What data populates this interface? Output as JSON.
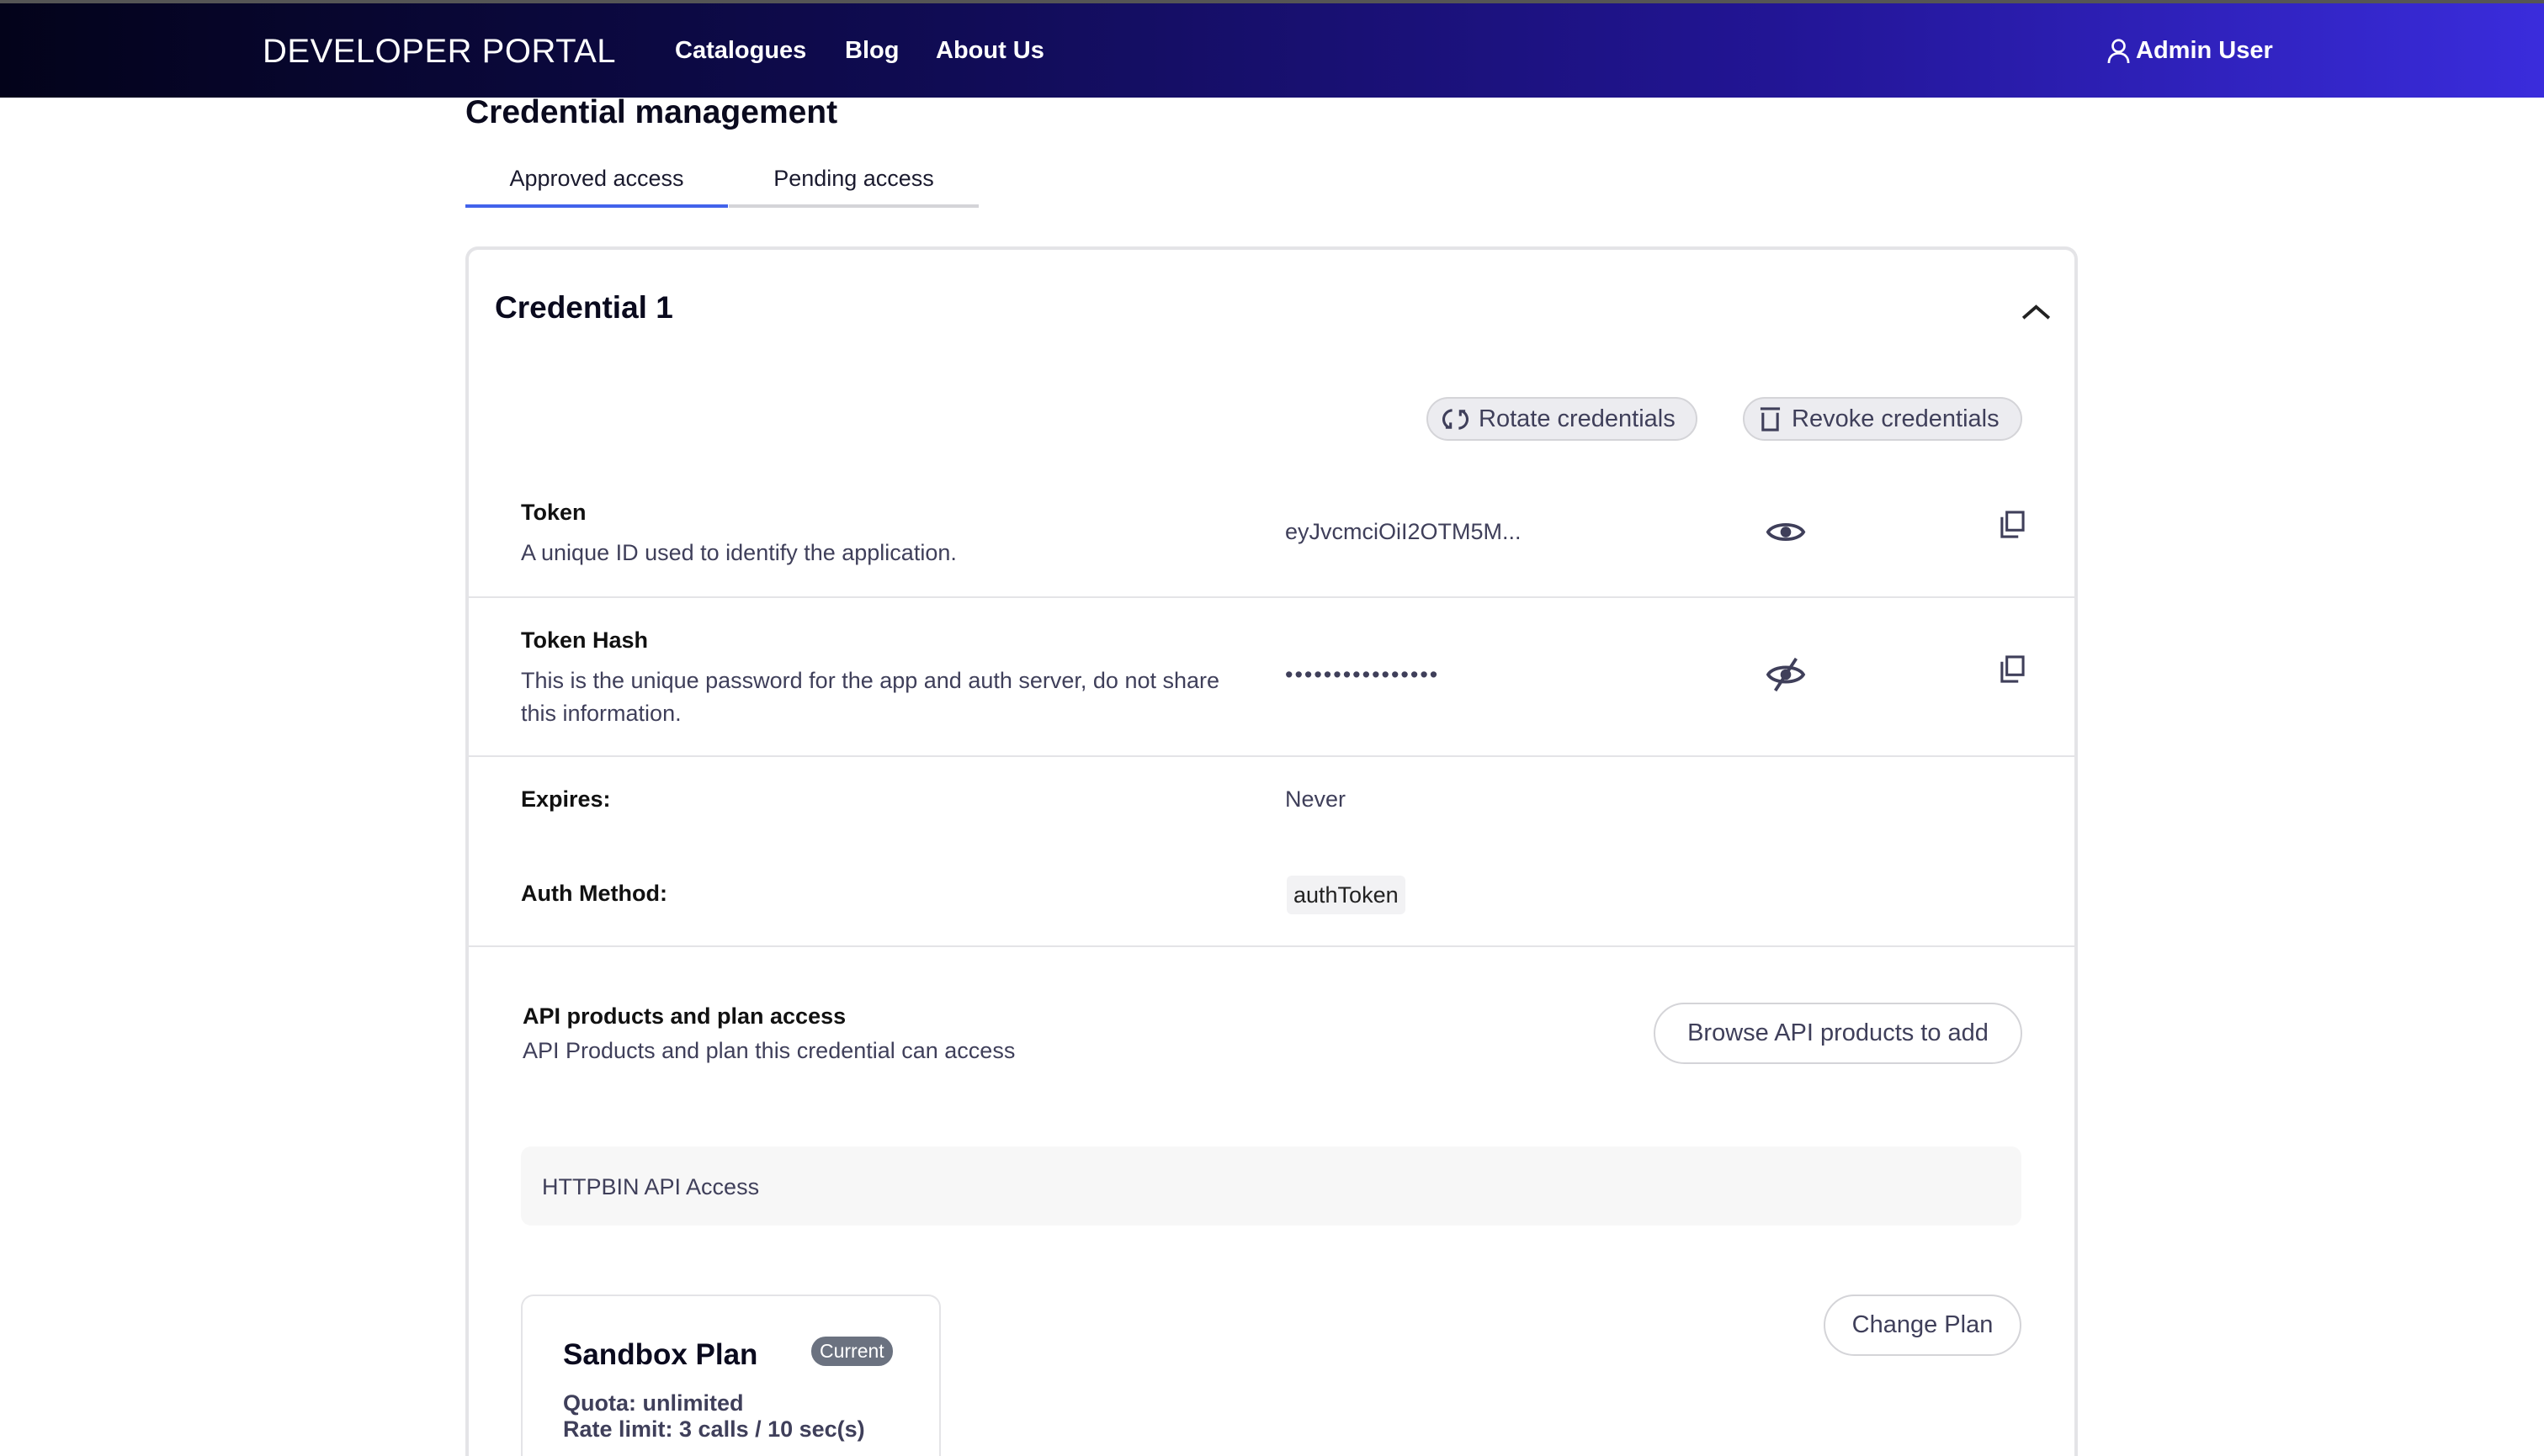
{
  "header": {
    "logo": "DEVELOPER PORTAL",
    "nav": [
      "Catalogues",
      "Blog",
      "About Us"
    ],
    "user": "Admin User",
    "user_icon": "user-icon"
  },
  "page": {
    "title": "Credential management",
    "tabs": [
      {
        "label": "Approved access",
        "active": true
      },
      {
        "label": "Pending access",
        "active": false
      }
    ]
  },
  "credential": {
    "title": "Credential 1",
    "rotate_label": "Rotate credentials",
    "revoke_label": "Revoke credentials",
    "token": {
      "label": "Token",
      "description": "A unique ID used to identify the application.",
      "value": "eyJvcmciOiI2OTM5M..."
    },
    "token_hash": {
      "label": "Token Hash",
      "description": "This is the unique password for the app and auth server, do not share this information.",
      "value": "••••••••••••••••"
    },
    "expires": {
      "label": "Expires:",
      "value": "Never"
    },
    "auth_method": {
      "label": "Auth Method:",
      "value": "authToken"
    },
    "products": {
      "title": "API products and plan access",
      "description": "API Products and plan this credential can access",
      "browse_label": "Browse API products to add",
      "product_name": "HTTPBIN API Access"
    },
    "plan": {
      "name": "Sandbox Plan",
      "badge": "Current",
      "quota": "Quota: unlimited",
      "rate_limit": "Rate limit: 3 calls / 10 sec(s)",
      "change_label": "Change Plan"
    }
  },
  "colors": {
    "accent": "#4263eb",
    "badge": "#6b7280",
    "text_muted": "#3f3f5a"
  }
}
